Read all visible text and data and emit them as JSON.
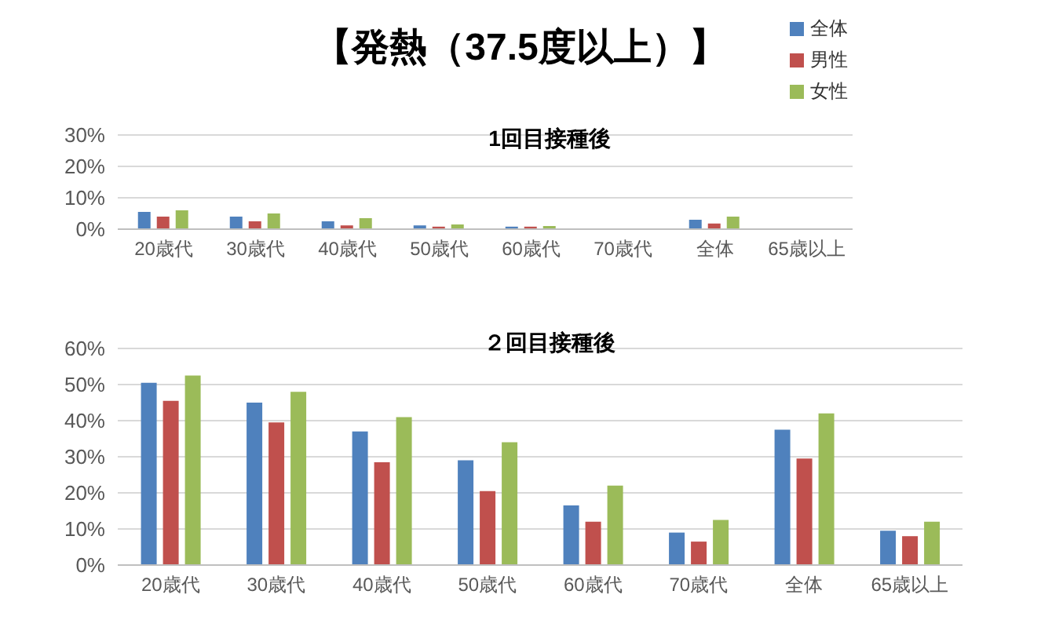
{
  "chart_data": [
    {
      "type": "bar",
      "title": "【発熱（37.5度以上）】",
      "subtitle": "1回目接種後",
      "categories": [
        "20歳代",
        "30歳代",
        "40歳代",
        "50歳代",
        "60歳代",
        "70歳代",
        "全体",
        "65歳以上"
      ],
      "series": [
        {
          "name": "全体",
          "color": "#4f81bd",
          "values": [
            5.5,
            4,
            2.5,
            1.2,
            0.8,
            0,
            3,
            0
          ]
        },
        {
          "name": "男性",
          "color": "#c0504d",
          "values": [
            4,
            2.5,
            1.2,
            0.8,
            0.8,
            0,
            1.8,
            0
          ]
        },
        {
          "name": "女性",
          "color": "#9bbb59",
          "values": [
            6,
            5,
            3.5,
            1.5,
            1,
            0,
            4,
            null
          ]
        }
      ],
      "ylim": [
        0,
        30
      ],
      "yticks": [
        {
          "value": 0,
          "label": "0%"
        },
        {
          "value": 10,
          "label": "10%"
        },
        {
          "value": 20,
          "label": "20%"
        },
        {
          "value": 30,
          "label": "30%"
        }
      ],
      "grid": "y",
      "legend": "top right"
    },
    {
      "type": "bar",
      "title": "２回目接種後",
      "categories": [
        "20歳代",
        "30歳代",
        "40歳代",
        "50歳代",
        "60歳代",
        "70歳代",
        "全体",
        "65歳以上"
      ],
      "series": [
        {
          "color": "#4f81bd",
          "values": [
            50.5,
            45,
            37,
            29,
            16.5,
            9,
            37.5,
            9.5
          ]
        },
        {
          "color": "#c0504d",
          "values": [
            45.5,
            39.5,
            28.5,
            20.5,
            12,
            6.5,
            29.5,
            8
          ]
        },
        {
          "color": "#9bbb59",
          "values": [
            52.5,
            48,
            41,
            34,
            22,
            12.5,
            42,
            12
          ]
        }
      ],
      "ylim": [
        0,
        60
      ],
      "yticks": [
        {
          "value": 0,
          "label": "0%"
        },
        {
          "value": 10,
          "label": "10%"
        },
        {
          "value": 20,
          "label": "20%"
        },
        {
          "value": 30,
          "label": "30%"
        },
        {
          "value": 40,
          "label": "40%"
        },
        {
          "value": 50,
          "label": "50%"
        },
        {
          "value": 60,
          "label": "60%"
        }
      ],
      "grid": "y"
    }
  ]
}
